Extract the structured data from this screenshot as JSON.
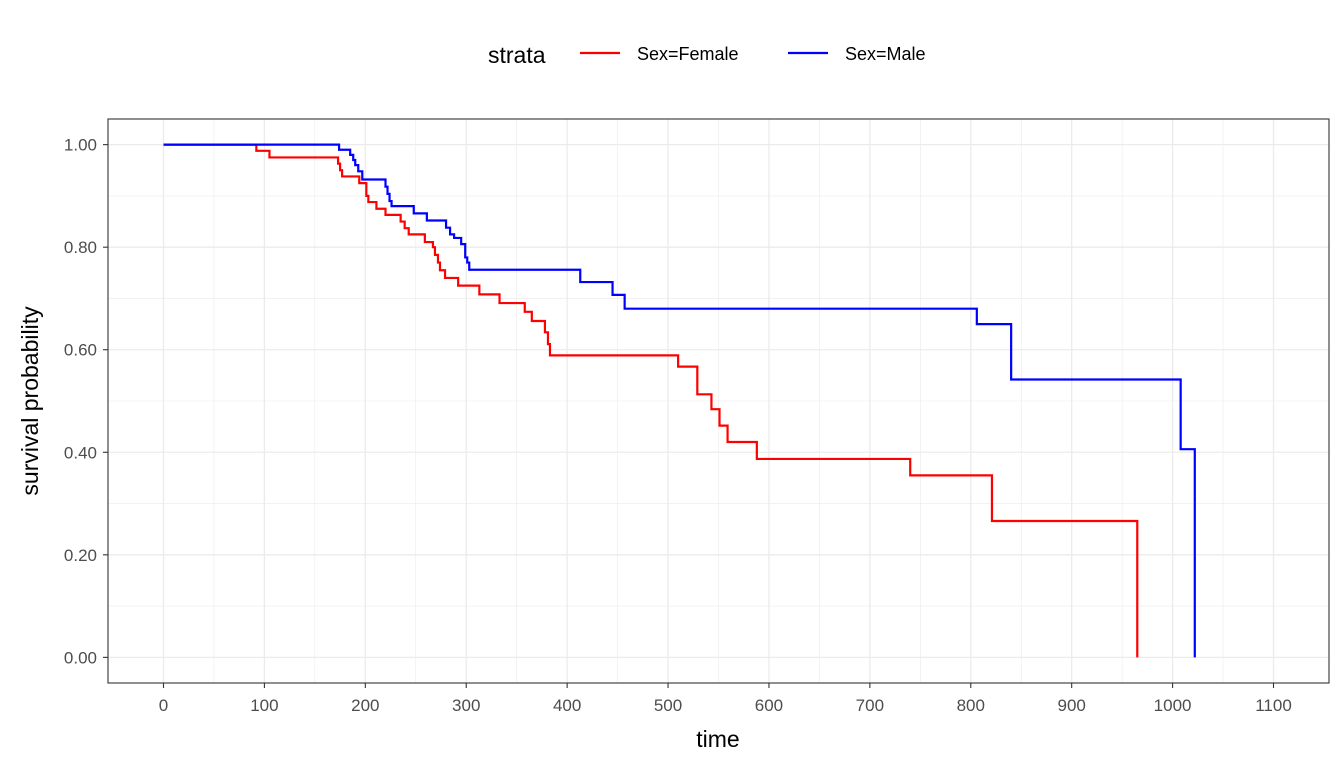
{
  "chart_data": {
    "type": "line",
    "subtype": "step",
    "title": "",
    "xlabel": "time",
    "ylabel": "survival probability",
    "xlim": [
      -55,
      1155
    ],
    "ylim": [
      -0.05,
      1.05
    ],
    "x_ticks": [
      0,
      100,
      200,
      300,
      400,
      500,
      600,
      700,
      800,
      900,
      1000,
      1100
    ],
    "x_tick_labels": [
      "0",
      "100",
      "200",
      "300",
      "400",
      "500",
      "600",
      "700",
      "800",
      "900",
      "1000",
      "1100"
    ],
    "y_ticks": [
      0,
      0.2,
      0.4,
      0.6,
      0.8,
      1.0
    ],
    "y_tick_labels": [
      "0.00",
      "0.20",
      "0.40",
      "0.60",
      "0.80",
      "1.00"
    ],
    "grid": true,
    "legend": {
      "title": "strata",
      "position": "top"
    },
    "series": [
      {
        "name": "Sex=Female",
        "color": "#ff0000",
        "x": [
          0,
          92,
          105,
          173,
          175,
          177,
          194,
          201,
          203,
          211,
          220,
          235,
          239,
          243,
          259,
          267,
          269,
          272,
          274,
          279,
          292,
          313,
          333,
          358,
          365,
          378,
          381,
          383,
          510,
          529,
          543,
          551,
          559,
          588,
          740,
          821,
          965
        ],
        "y": [
          1.0,
          0.988,
          0.975,
          0.963,
          0.95,
          0.938,
          0.925,
          0.9,
          0.888,
          0.875,
          0.863,
          0.85,
          0.837,
          0.825,
          0.81,
          0.8,
          0.785,
          0.77,
          0.755,
          0.74,
          0.725,
          0.708,
          0.691,
          0.674,
          0.656,
          0.634,
          0.611,
          0.589,
          0.567,
          0.513,
          0.484,
          0.452,
          0.42,
          0.387,
          0.355,
          0.266,
          0.133
        ]
      },
      {
        "name": "Sex=Male",
        "color": "#0000ff",
        "x": [
          0,
          174,
          185,
          188,
          190,
          193,
          197,
          220,
          222,
          224,
          226,
          248,
          261,
          280,
          284,
          288,
          295,
          299,
          301,
          303,
          403,
          413,
          445,
          457,
          806,
          840,
          1008,
          1022
        ],
        "y": [
          1.0,
          0.99,
          0.98,
          0.97,
          0.96,
          0.948,
          0.932,
          0.918,
          0.904,
          0.89,
          0.88,
          0.866,
          0.852,
          0.838,
          0.825,
          0.818,
          0.806,
          0.78,
          0.77,
          0.756,
          0.756,
          0.732,
          0.707,
          0.68,
          0.65,
          0.542,
          0.406,
          0.203
        ]
      }
    ],
    "end_drops": [
      {
        "series": "Sex=Female",
        "x": 965,
        "y": 0.0
      },
      {
        "series": "Sex=Male",
        "x": 1022,
        "y": 0.0
      }
    ]
  }
}
